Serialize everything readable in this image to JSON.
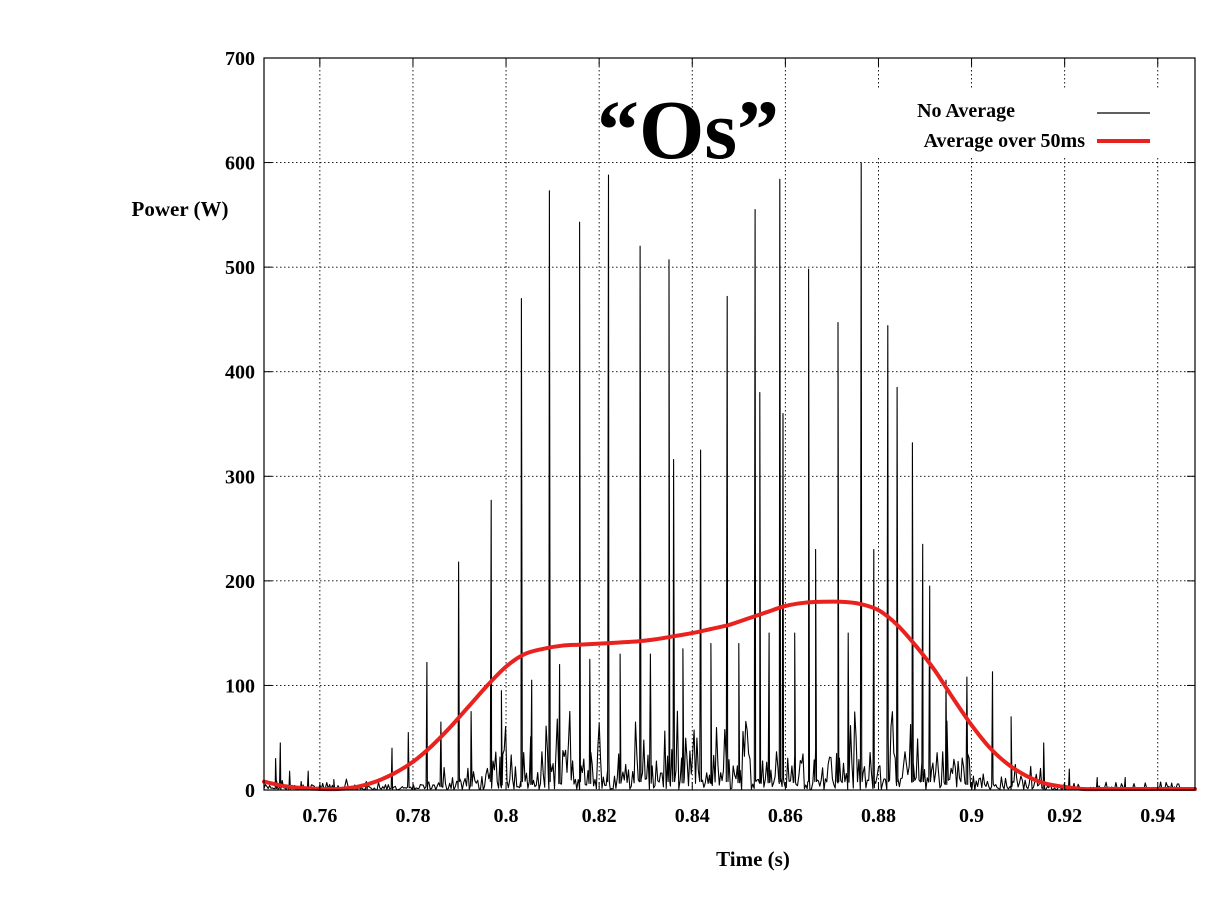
{
  "chart_data": {
    "type": "line",
    "title": "",
    "annotation": "“Os”",
    "xlabel": "Time (s)",
    "ylabel": "Power (W)",
    "xlim": [
      0.748,
      0.948
    ],
    "ylim": [
      0,
      700
    ],
    "xticks": [
      0.76,
      0.78,
      0.8,
      0.82,
      0.84,
      0.86,
      0.88,
      0.9,
      0.92,
      0.94
    ],
    "xtick_labels": [
      "0.76",
      "0.78",
      "0.8",
      "0.82",
      "0.84",
      "0.86",
      "0.88",
      "0.9",
      "0.92",
      "0.94"
    ],
    "yticks": [
      0,
      100,
      200,
      300,
      400,
      500,
      600,
      700
    ],
    "ytick_labels": [
      "0",
      "100",
      "200",
      "300",
      "400",
      "500",
      "600",
      "700"
    ],
    "grid": true,
    "legend_position": "top-right",
    "series": [
      {
        "name": "No Average",
        "color": "#000000",
        "style": "thin",
        "peaks": [
          {
            "x": 0.7505,
            "y": 30
          },
          {
            "x": 0.7515,
            "y": 45
          },
          {
            "x": 0.7535,
            "y": 18
          },
          {
            "x": 0.756,
            "y": 8
          },
          {
            "x": 0.7575,
            "y": 18
          },
          {
            "x": 0.763,
            "y": 10
          },
          {
            "x": 0.77,
            "y": 8
          },
          {
            "x": 0.7755,
            "y": 40
          },
          {
            "x": 0.779,
            "y": 55
          },
          {
            "x": 0.783,
            "y": 122
          },
          {
            "x": 0.786,
            "y": 65
          },
          {
            "x": 0.7898,
            "y": 218
          },
          {
            "x": 0.7925,
            "y": 75
          },
          {
            "x": 0.7968,
            "y": 277
          },
          {
            "x": 0.799,
            "y": 95
          },
          {
            "x": 0.8033,
            "y": 470
          },
          {
            "x": 0.8055,
            "y": 105
          },
          {
            "x": 0.8093,
            "y": 573
          },
          {
            "x": 0.8115,
            "y": 120
          },
          {
            "x": 0.8158,
            "y": 543
          },
          {
            "x": 0.818,
            "y": 125
          },
          {
            "x": 0.822,
            "y": 588
          },
          {
            "x": 0.8245,
            "y": 130
          },
          {
            "x": 0.8288,
            "y": 520
          },
          {
            "x": 0.831,
            "y": 130
          },
          {
            "x": 0.835,
            "y": 507
          },
          {
            "x": 0.836,
            "y": 316
          },
          {
            "x": 0.838,
            "y": 135
          },
          {
            "x": 0.8418,
            "y": 325
          },
          {
            "x": 0.844,
            "y": 140
          },
          {
            "x": 0.8475,
            "y": 472
          },
          {
            "x": 0.85,
            "y": 140
          },
          {
            "x": 0.8535,
            "y": 555
          },
          {
            "x": 0.8545,
            "y": 380
          },
          {
            "x": 0.8565,
            "y": 150
          },
          {
            "x": 0.8588,
            "y": 584
          },
          {
            "x": 0.8595,
            "y": 360
          },
          {
            "x": 0.862,
            "y": 150
          },
          {
            "x": 0.865,
            "y": 498
          },
          {
            "x": 0.8665,
            "y": 230
          },
          {
            "x": 0.8713,
            "y": 447
          },
          {
            "x": 0.8735,
            "y": 150
          },
          {
            "x": 0.8763,
            "y": 600
          },
          {
            "x": 0.879,
            "y": 230
          },
          {
            "x": 0.882,
            "y": 444
          },
          {
            "x": 0.884,
            "y": 385
          },
          {
            "x": 0.8873,
            "y": 332
          },
          {
            "x": 0.8895,
            "y": 235
          },
          {
            "x": 0.891,
            "y": 195
          },
          {
            "x": 0.8945,
            "y": 105
          },
          {
            "x": 0.899,
            "y": 108
          },
          {
            "x": 0.9045,
            "y": 113
          },
          {
            "x": 0.9085,
            "y": 70
          },
          {
            "x": 0.9155,
            "y": 45
          },
          {
            "x": 0.921,
            "y": 20
          },
          {
            "x": 0.927,
            "y": 12
          },
          {
            "x": 0.933,
            "y": 12
          }
        ]
      },
      {
        "name": "Average over 50ms",
        "color": "#e8231f",
        "style": "thick",
        "x": [
          0.748,
          0.752,
          0.756,
          0.76,
          0.764,
          0.768,
          0.772,
          0.776,
          0.78,
          0.784,
          0.788,
          0.792,
          0.796,
          0.8,
          0.804,
          0.808,
          0.812,
          0.816,
          0.82,
          0.824,
          0.828,
          0.832,
          0.836,
          0.84,
          0.844,
          0.848,
          0.852,
          0.856,
          0.86,
          0.864,
          0.868,
          0.872,
          0.876,
          0.88,
          0.884,
          0.888,
          0.892,
          0.896,
          0.9,
          0.904,
          0.908,
          0.912,
          0.916,
          0.92,
          0.924,
          0.928,
          0.932,
          0.936,
          0.94,
          0.944,
          0.948
        ],
        "y": [
          8,
          4,
          2,
          1,
          1,
          3,
          8,
          16,
          27,
          42,
          60,
          80,
          100,
          118,
          130,
          135,
          138,
          139,
          140,
          141,
          142,
          144,
          147,
          150,
          154,
          158,
          164,
          170,
          176,
          179,
          180,
          180,
          178,
          172,
          158,
          138,
          115,
          88,
          62,
          40,
          24,
          13,
          6,
          3,
          1,
          1,
          1,
          1,
          1,
          1,
          1
        ]
      }
    ]
  }
}
